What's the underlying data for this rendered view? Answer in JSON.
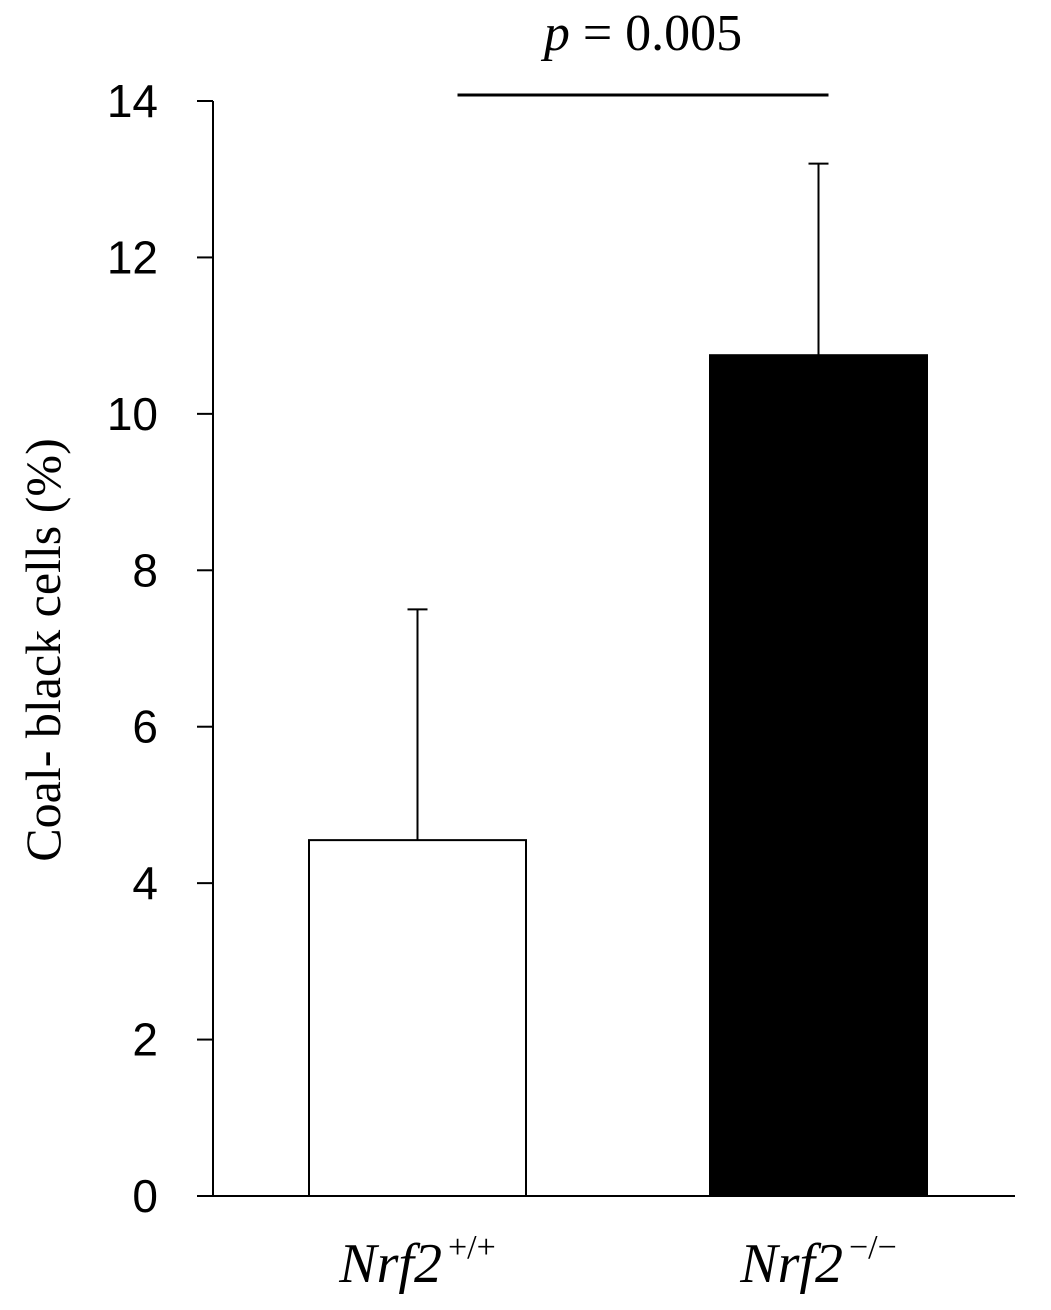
{
  "chart_data": {
    "type": "bar",
    "categories": [
      {
        "base": "Nrf2",
        "superscript": "+/+"
      },
      {
        "base": "Nrf2",
        "superscript": "−/−"
      }
    ],
    "values": [
      4.55,
      10.75
    ],
    "errors": [
      2.95,
      2.45
    ],
    "bar_colors": [
      "#ffffff",
      "#000000"
    ],
    "bar_edge_color": "#000000",
    "ylabel": "Coal- black cells (%)",
    "ylim": [
      0,
      14
    ],
    "yticks": [
      0,
      2,
      4,
      6,
      8,
      10,
      12,
      14
    ],
    "ytick_labels": [
      "0",
      "2",
      "4",
      "6",
      "8",
      "10",
      "12",
      "14"
    ],
    "grid": false,
    "significance": {
      "between": [
        0,
        1
      ],
      "p_symbol": "p",
      "p_text": " = 0.005"
    }
  }
}
